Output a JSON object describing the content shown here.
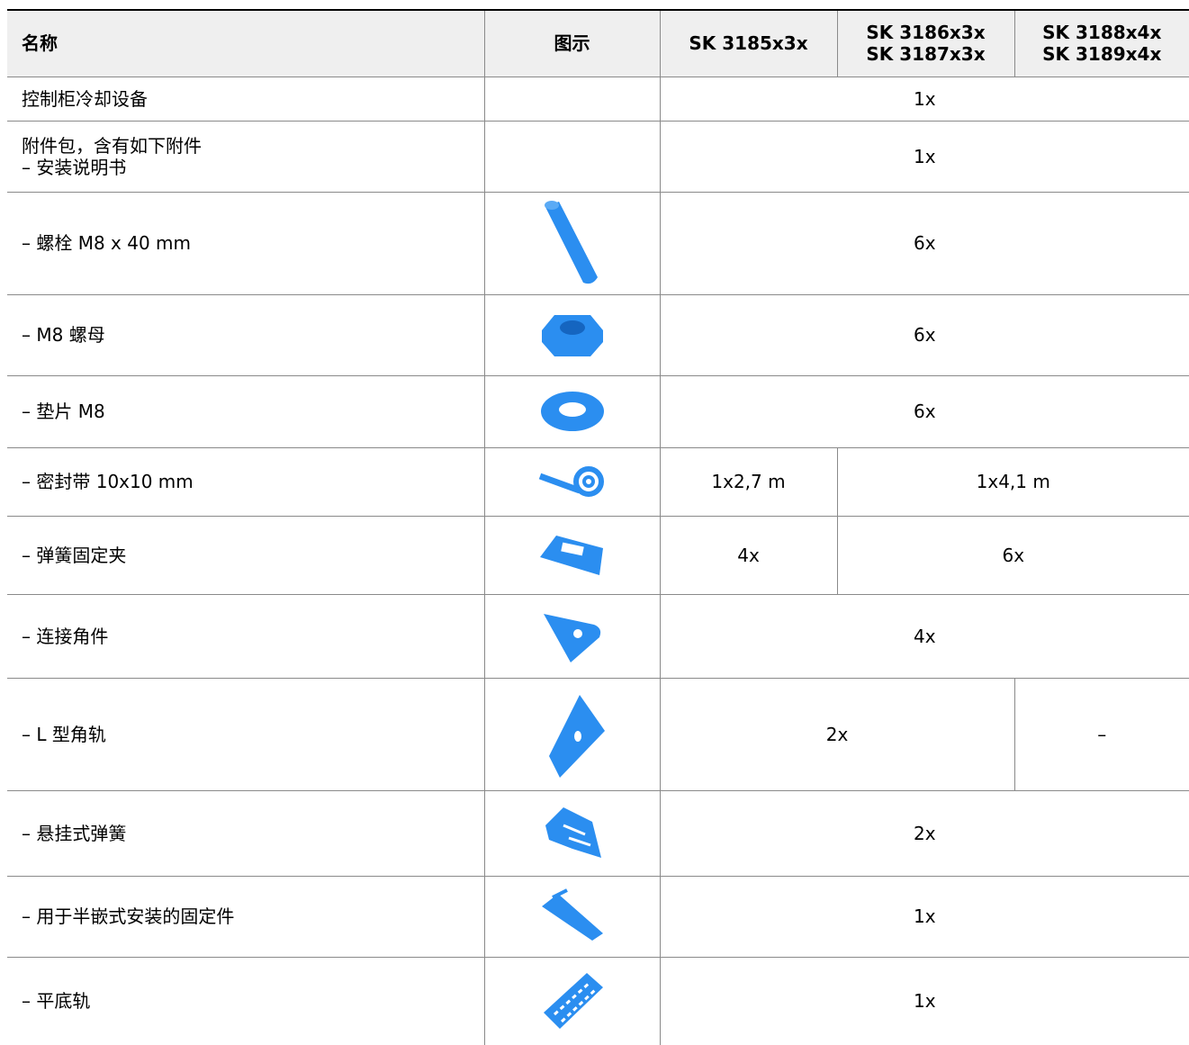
{
  "table": {
    "header": [
      "名称",
      "图示",
      "SK 3185x3x",
      [
        "SK 3186x3x",
        "SK 3187x3x"
      ],
      [
        "SK 3188x4x",
        "SK 3189x4x"
      ]
    ],
    "rows": [
      {
        "name": [
          "控制柜冷却设备"
        ],
        "quantities": [
          "1x"
        ]
      },
      {
        "name": [
          "附件包，含有如下附件",
          "– 安装说明书"
        ],
        "quantities": [
          "1x"
        ]
      },
      {
        "name": [
          "– 螺栓 M8 x 40 mm"
        ],
        "quantities": [
          "6x"
        ]
      },
      {
        "name": [
          "– M8 螺母"
        ],
        "quantities": [
          "6x"
        ]
      },
      {
        "name": [
          "– 垫片 M8"
        ],
        "quantities": [
          "6x"
        ]
      },
      {
        "name": [
          "– 密封带 10x10 mm"
        ],
        "quantities": [
          "1x2,7 m",
          "1x4,1 m"
        ]
      },
      {
        "name": [
          "– 弹簧固定夹"
        ],
        "quantities": [
          "4x",
          "6x"
        ]
      },
      {
        "name": [
          "– 连接角件"
        ],
        "quantities": [
          "4x"
        ]
      },
      {
        "name": [
          "– L 型角轨"
        ],
        "quantities": [
          "2x",
          "–"
        ]
      },
      {
        "name": [
          "– 悬挂式弹簧"
        ],
        "quantities": [
          "2x"
        ]
      },
      {
        "name": [
          "– 用于半嵌式安装的固定件"
        ],
        "quantities": [
          "1x"
        ]
      },
      {
        "name": [
          "– 平底轨"
        ],
        "quantities": [
          "1x"
        ]
      }
    ]
  }
}
